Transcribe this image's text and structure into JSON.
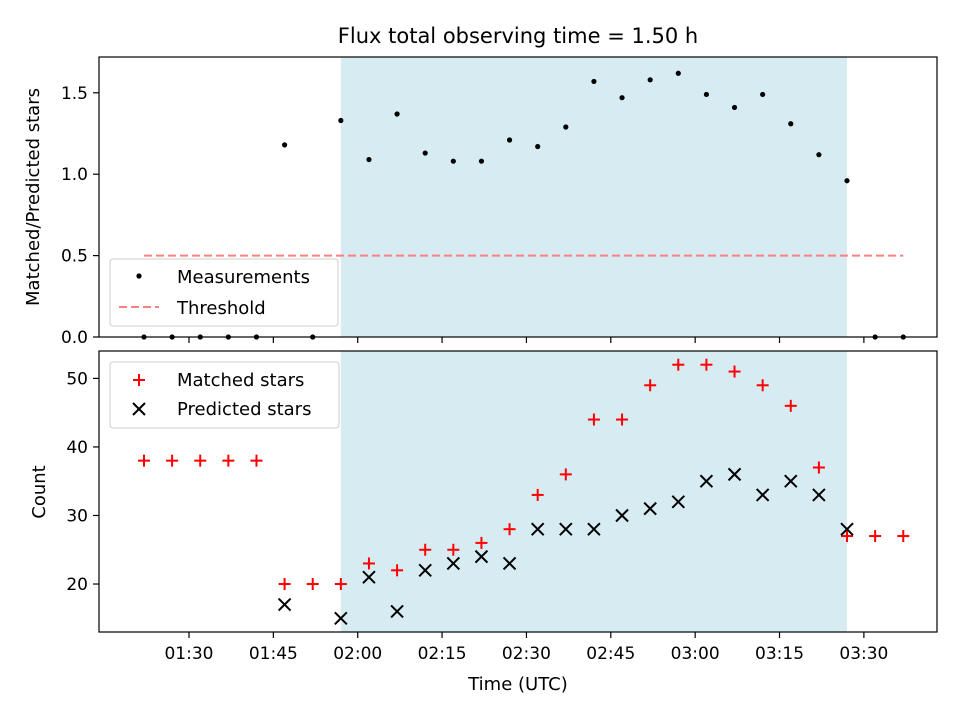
{
  "chart_data": [
    {
      "type": "scatter",
      "title": "Flux total observing time = 1.50 h",
      "ylabel": "Matched/Predicted stars",
      "ylim": [
        0,
        1.72
      ],
      "yticks": [
        0.0,
        0.5,
        1.0,
        1.5
      ],
      "ytick_labels": [
        "0.0",
        "0.5",
        "1.0",
        "1.5"
      ],
      "highlight_span": {
        "start": "01:57",
        "end": "03:27",
        "color": "#add8e6"
      },
      "legend_position": "lower-left",
      "series": [
        {
          "name": "Measurements",
          "marker": "dot",
          "color": "#000000",
          "x": [
            "01:22",
            "01:27",
            "01:32",
            "01:37",
            "01:42",
            "01:47",
            "01:52",
            "01:57",
            "02:02",
            "02:07",
            "02:12",
            "02:17",
            "02:22",
            "02:27",
            "02:32",
            "02:37",
            "02:42",
            "02:47",
            "02:52",
            "02:57",
            "03:02",
            "03:07",
            "03:12",
            "03:17",
            "03:22",
            "03:27",
            "03:32",
            "03:37"
          ],
          "y": [
            0,
            0,
            0,
            0,
            0,
            1.18,
            0,
            1.33,
            1.09,
            1.37,
            1.13,
            1.08,
            1.08,
            1.21,
            1.17,
            1.29,
            1.57,
            1.47,
            1.58,
            1.62,
            1.49,
            1.41,
            1.49,
            1.31,
            1.12,
            0.96,
            0,
            0
          ]
        },
        {
          "name": "Threshold",
          "style": "dashed-line",
          "color": "#ff7f7f",
          "x": [
            "01:22",
            "03:37"
          ],
          "y": [
            0.5,
            0.5
          ]
        }
      ]
    },
    {
      "type": "scatter",
      "xlabel": "Time (UTC)",
      "ylabel": "Count",
      "ylim": [
        13,
        54
      ],
      "yticks": [
        20,
        30,
        40,
        50
      ],
      "ytick_labels": [
        "20",
        "30",
        "40",
        "50"
      ],
      "xticks": [
        "01:30",
        "01:45",
        "02:00",
        "02:15",
        "02:30",
        "02:45",
        "03:00",
        "03:15",
        "03:30"
      ],
      "highlight_span": {
        "start": "01:57",
        "end": "03:27",
        "color": "#add8e6"
      },
      "legend_position": "upper-left",
      "series": [
        {
          "name": "Matched stars",
          "marker": "plus",
          "color": "#ff0000",
          "x": [
            "01:22",
            "01:27",
            "01:32",
            "01:37",
            "01:42",
            "01:47",
            "01:52",
            "01:57",
            "02:02",
            "02:07",
            "02:12",
            "02:17",
            "02:22",
            "02:27",
            "02:32",
            "02:37",
            "02:42",
            "02:47",
            "02:52",
            "02:57",
            "03:02",
            "03:07",
            "03:12",
            "03:17",
            "03:22",
            "03:27",
            "03:32",
            "03:37"
          ],
          "y": [
            38,
            38,
            38,
            38,
            38,
            20,
            20,
            20,
            23,
            22,
            25,
            25,
            26,
            28,
            33,
            36,
            44,
            44,
            49,
            52,
            52,
            51,
            49,
            46,
            37,
            27,
            27,
            27
          ]
        },
        {
          "name": "Predicted stars",
          "marker": "x",
          "color": "#000000",
          "x": [
            "01:47",
            "01:57",
            "02:02",
            "02:07",
            "02:12",
            "02:17",
            "02:22",
            "02:27",
            "02:32",
            "02:37",
            "02:42",
            "02:47",
            "02:52",
            "02:57",
            "03:02",
            "03:07",
            "03:12",
            "03:17",
            "03:22",
            "03:27"
          ],
          "y": [
            17,
            15,
            21,
            16,
            22,
            23,
            24,
            23,
            28,
            28,
            28,
            30,
            31,
            32,
            35,
            36,
            33,
            35,
            33,
            28
          ]
        }
      ]
    }
  ]
}
